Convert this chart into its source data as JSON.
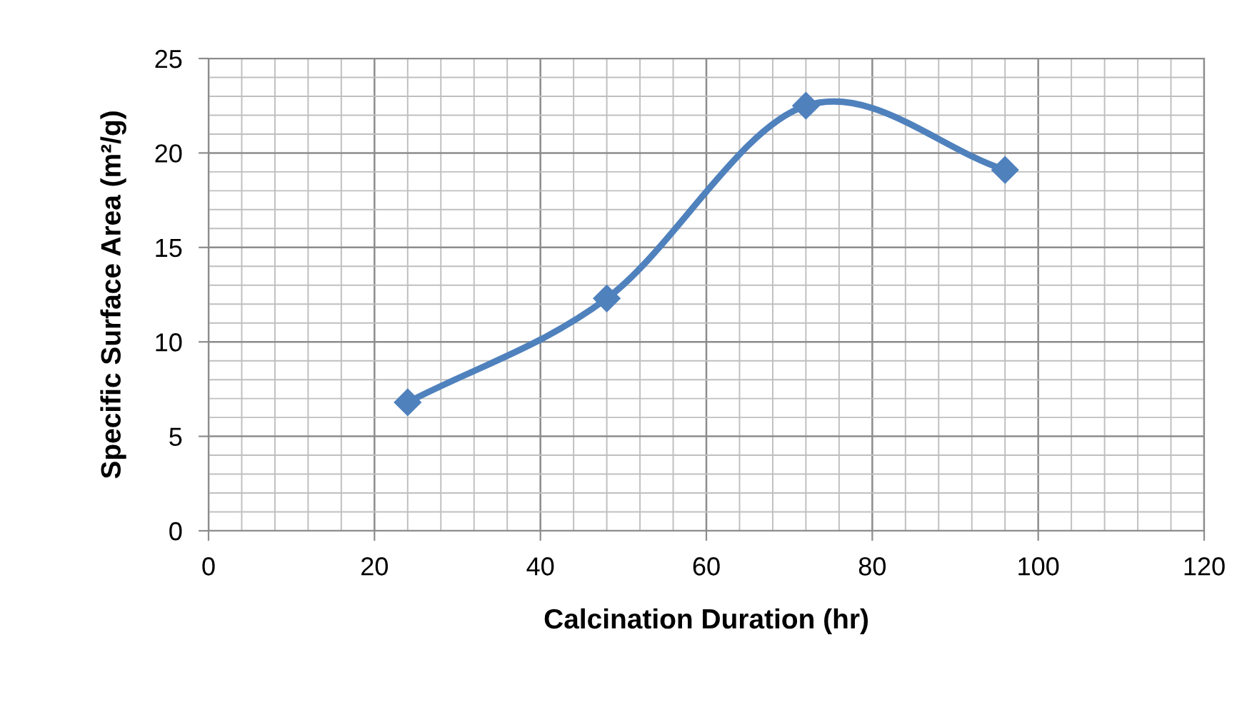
{
  "chart_data": {
    "type": "line",
    "xlabel": "Calcination Duration (hr)",
    "ylabel": "Specific Surface Area (m²/g)",
    "x": [
      24,
      48,
      72,
      96
    ],
    "series": [
      {
        "color": "#4f81bd",
        "values": [
          6.8,
          12.3,
          22.5,
          19.1
        ]
      }
    ],
    "xlim": [
      0,
      120
    ],
    "xticks": [
      0,
      20,
      40,
      60,
      80,
      100,
      120
    ],
    "ylim": [
      0,
      25
    ],
    "yticks": [
      0,
      5,
      10,
      15,
      20,
      25
    ],
    "grid": true,
    "marker": "diamond",
    "line_style": "solid"
  }
}
